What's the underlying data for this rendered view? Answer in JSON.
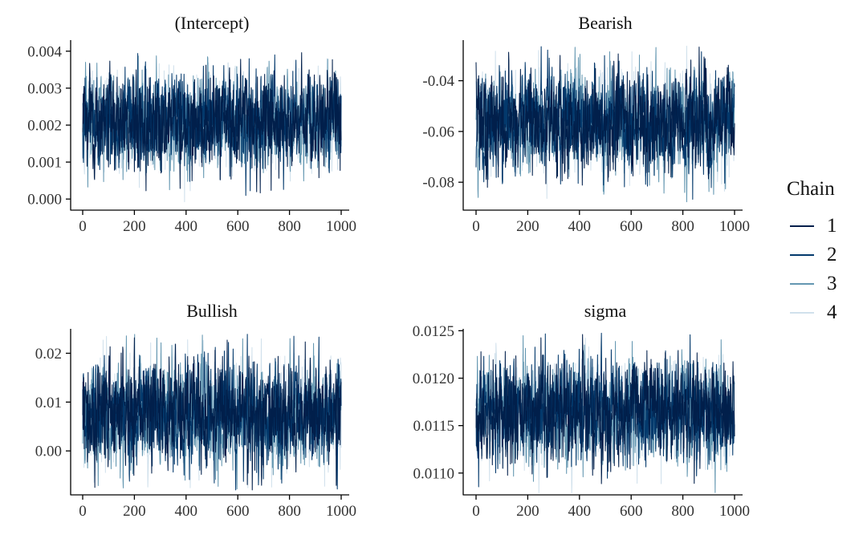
{
  "chart_data": [
    {
      "type": "line",
      "title": "(Intercept)",
      "xlim": [
        0,
        1000
      ],
      "ylim": [
        -0.0003,
        0.0043
      ],
      "x_ticks": [
        0,
        200,
        400,
        600,
        800,
        1000
      ],
      "x_tick_labels": [
        "0",
        "200",
        "400",
        "600",
        "800",
        "1000"
      ],
      "y_ticks": [
        0.0,
        0.001,
        0.002,
        0.003,
        0.004
      ],
      "y_tick_labels": [
        "0.000",
        "0.001",
        "0.002",
        "0.003",
        "0.004"
      ],
      "trace": {
        "n_iterations": 1000,
        "mean": 0.0021,
        "sd": 0.00062,
        "min": -0.0001,
        "max": 0.0043
      }
    },
    {
      "type": "line",
      "title": "Bearish",
      "xlim": [
        0,
        1000
      ],
      "ylim": [
        -0.091,
        -0.024
      ],
      "x_ticks": [
        0,
        200,
        400,
        600,
        800,
        1000
      ],
      "x_tick_labels": [
        "0",
        "200",
        "400",
        "600",
        "800",
        "1000"
      ],
      "y_ticks": [
        -0.08,
        -0.06,
        -0.04
      ],
      "y_tick_labels": [
        "-0.08",
        "-0.06",
        "-0.04"
      ],
      "trace": {
        "n_iterations": 1000,
        "mean": -0.056,
        "sd": 0.0095,
        "min": -0.088,
        "max": -0.026
      }
    },
    {
      "type": "line",
      "title": "Bullish",
      "xlim": [
        0,
        1000
      ],
      "ylim": [
        -0.009,
        0.025
      ],
      "x_ticks": [
        0,
        200,
        400,
        600,
        800,
        1000
      ],
      "x_tick_labels": [
        "0",
        "200",
        "400",
        "600",
        "800",
        "1000"
      ],
      "y_ticks": [
        0.0,
        0.01,
        0.02
      ],
      "y_tick_labels": [
        "0.00",
        "0.01",
        "0.02"
      ],
      "trace": {
        "n_iterations": 1000,
        "mean": 0.0075,
        "sd": 0.0052,
        "min": -0.008,
        "max": 0.024
      }
    },
    {
      "type": "line",
      "title": "sigma",
      "xlim": [
        0,
        1000
      ],
      "ylim": [
        0.01077,
        0.01252
      ],
      "x_ticks": [
        0,
        200,
        400,
        600,
        800,
        1000
      ],
      "x_tick_labels": [
        "0",
        "200",
        "400",
        "600",
        "800",
        "1000"
      ],
      "y_ticks": [
        0.011,
        0.0115,
        0.012,
        0.0125
      ],
      "y_tick_labels": [
        "0.0110",
        "0.0115",
        "0.0120",
        "0.0125"
      ],
      "trace": {
        "n_iterations": 1000,
        "mean": 0.01163,
        "sd": 0.00026,
        "min": 0.01078,
        "max": 0.01248
      }
    }
  ],
  "legend": {
    "title": "Chain",
    "placement": "right",
    "items": [
      {
        "label": "1",
        "color": "#011f4b"
      },
      {
        "label": "2",
        "color": "#03396c"
      },
      {
        "label": "3",
        "color": "#6497b1"
      },
      {
        "label": "4",
        "color": "#d1e1ec"
      }
    ]
  }
}
